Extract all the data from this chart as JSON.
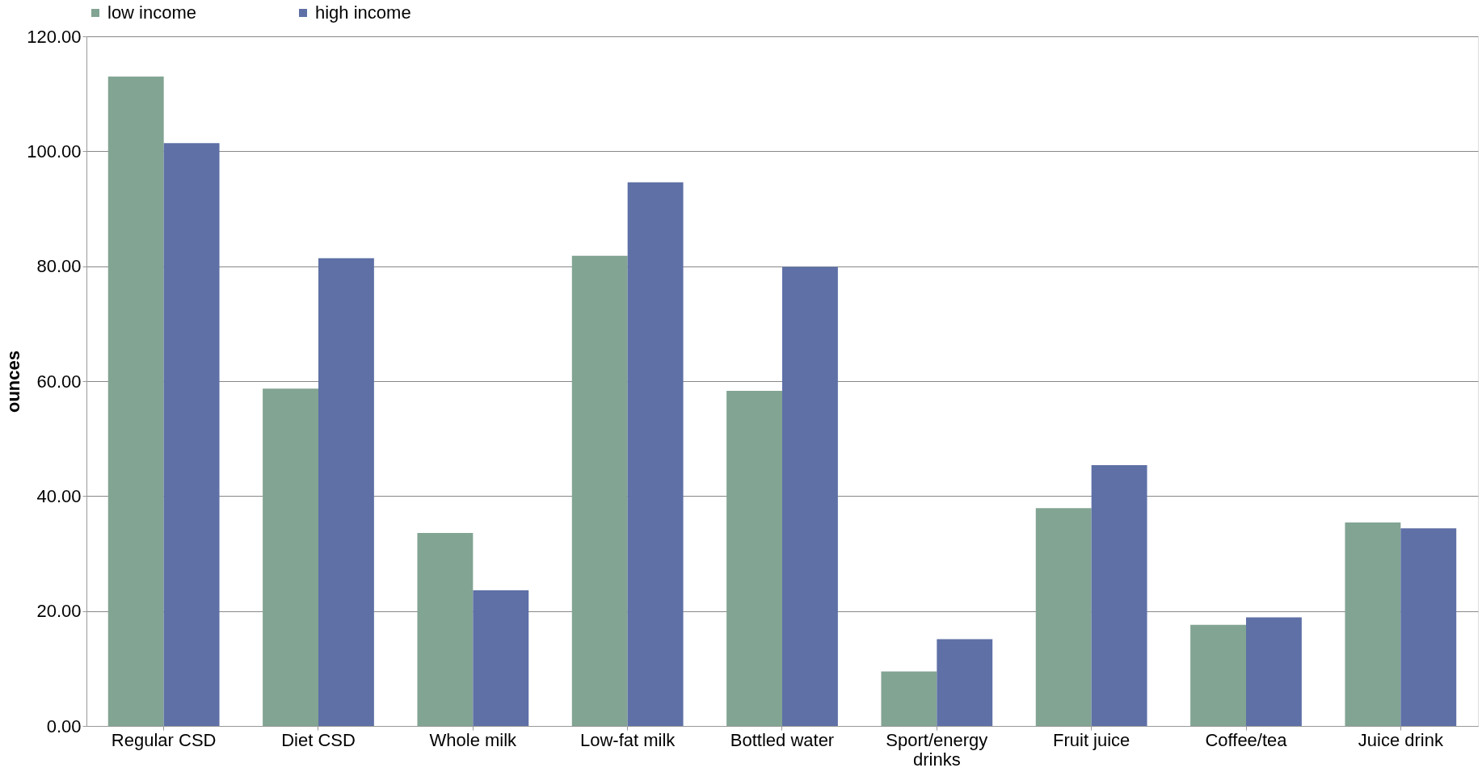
{
  "chart_data": {
    "type": "bar",
    "ylabel": "ounces",
    "categories": [
      "Regular CSD",
      "Diet CSD",
      "Whole milk",
      "Low-fat  milk",
      "Bottled water",
      "Sport/energy drinks",
      "Fruit juice",
      "Coffee/tea",
      "Juice drink"
    ],
    "series": [
      {
        "name": "low income",
        "color": "#82a493",
        "values": [
          113.0,
          58.7,
          33.6,
          81.8,
          58.3,
          9.5,
          37.9,
          17.6,
          35.4
        ]
      },
      {
        "name": "high income",
        "color": "#5e70a6",
        "values": [
          101.4,
          81.4,
          23.6,
          94.6,
          79.9,
          15.1,
          45.4,
          18.9,
          34.4
        ]
      }
    ],
    "ylim": [
      0,
      120
    ],
    "yticks": [
      {
        "value": 0,
        "label": "0.00"
      },
      {
        "value": 20,
        "label": "20.00"
      },
      {
        "value": 40,
        "label": "40.00"
      },
      {
        "value": 60,
        "label": "60.00"
      },
      {
        "value": 80,
        "label": "80.00"
      },
      {
        "value": 100,
        "label": "100.00"
      },
      {
        "value": 120,
        "label": "120.00"
      }
    ],
    "grid": "y",
    "legend": "top"
  }
}
